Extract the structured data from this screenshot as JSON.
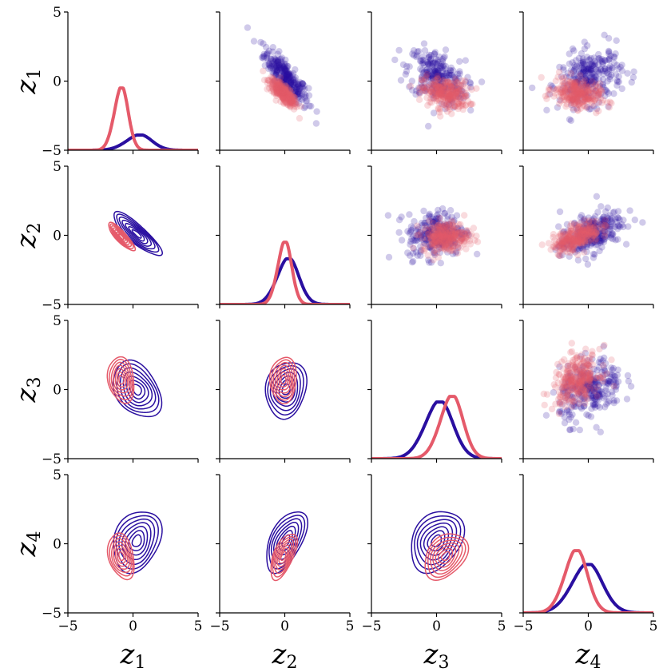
{
  "chart_data": {
    "type": "pairplot",
    "variables": [
      {
        "base": "z",
        "sub": "1"
      },
      {
        "base": "z",
        "sub": "2"
      },
      {
        "base": "z",
        "sub": "3"
      },
      {
        "base": "z",
        "sub": "4"
      }
    ],
    "axis_range": [
      -5,
      5
    ],
    "ticks": [
      -5,
      0,
      5
    ],
    "tick_labels": [
      "−5",
      "0",
      "5"
    ],
    "upper_triangle": "scatter",
    "lower_triangle": "kde-contour",
    "diagonal": "kde-density",
    "series": [
      {
        "color": "#2a0fa0",
        "means": [
          0.3,
          0.1,
          0.0,
          0.2
        ],
        "stds": [
          1.0,
          0.85,
          1.1,
          1.2
        ],
        "correlations": {
          "1-2": -0.85,
          "1-3": -0.35,
          "1-4": 0.25,
          "2-3": 0.15,
          "2-4": 0.55,
          "3-4": 0.3
        },
        "diag_peaks": [
          0.3,
          0.1,
          0.0,
          -0.3
        ],
        "diag_heights": [
          1.1,
          3.3,
          4.1,
          3.5
        ]
      },
      {
        "color": "#e55a6a",
        "means": [
          -0.9,
          -0.1,
          0.7,
          -0.9
        ],
        "stds": [
          0.55,
          0.55,
          0.9,
          0.9
        ],
        "correlations": {
          "1-2": -0.85,
          "1-3": -0.2,
          "1-4": -0.3,
          "2-3": 0.05,
          "2-4": 0.6,
          "3-4": 0.35
        },
        "diag_peaks": [
          -1.0,
          -0.1,
          1.0,
          -1.1
        ],
        "diag_heights": [
          4.5,
          4.5,
          4.5,
          4.5
        ]
      }
    ]
  }
}
